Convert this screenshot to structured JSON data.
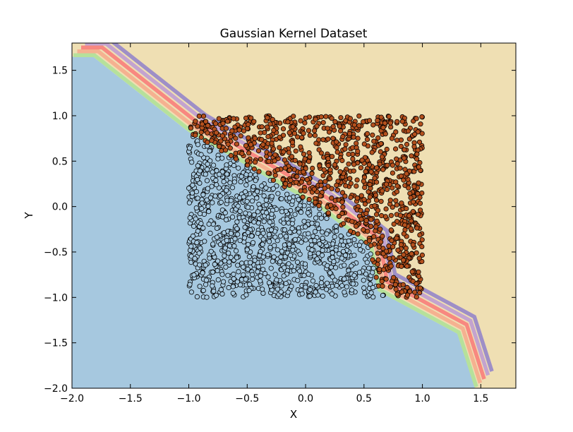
{
  "chart_data": {
    "type": "scatter",
    "title": "Gaussian Kernel Dataset",
    "xlabel": "X",
    "ylabel": "Y",
    "xlim": [
      -2.0,
      1.8
    ],
    "ylim": [
      -2.0,
      1.8
    ],
    "grid": false,
    "x_ticks": [
      -2.0,
      -1.5,
      -1.0,
      -0.5,
      0.0,
      0.5,
      1.0,
      1.5
    ],
    "y_ticks": [
      -2.0,
      -1.5,
      -1.0,
      -0.5,
      0.0,
      0.5,
      1.0,
      1.5
    ],
    "x_tick_labels": [
      "−2.0",
      "−1.5",
      "−1.0",
      "−0.5",
      "0.0",
      "0.5",
      "1.0",
      "1.5"
    ],
    "y_tick_labels": [
      "−2.0",
      "−1.5",
      "−1.0",
      "−0.5",
      "0.0",
      "0.5",
      "1.0",
      "1.5"
    ],
    "decision_regions": {
      "class_0_color": "#a6c8df",
      "class_1_color": "#efdfb3",
      "boundary_band_colors": [
        "#b6e19b",
        "#f5b190",
        "#f88880",
        "#c3a3cf",
        "#9e8fc7"
      ],
      "boundary_line": [
        [
          -2.0,
          1.65
        ],
        [
          -1.82,
          1.65
        ],
        [
          -1.0,
          0.82
        ],
        [
          0.1,
          0.0
        ],
        [
          0.55,
          -0.45
        ],
        [
          0.62,
          -0.93
        ],
        [
          1.3,
          -1.4
        ],
        [
          1.45,
          -2.0
        ]
      ]
    },
    "series": [
      {
        "color": "#a6c8df",
        "edge_color": "#000000",
        "region": {
          "x": [
            -1.0,
            0.7
          ],
          "y": [
            -1.0,
            0.82
          ]
        },
        "rule": "x + y < 0 (left of boundary)",
        "count": 1000
      },
      {
        "color": "#b4501d",
        "edge_color": "#000000",
        "region": {
          "x": [
            -1.0,
            1.0
          ],
          "y": [
            -1.0,
            1.0
          ]
        },
        "rule": "x + y > 0 (right of boundary)",
        "count": 1000
      }
    ]
  }
}
